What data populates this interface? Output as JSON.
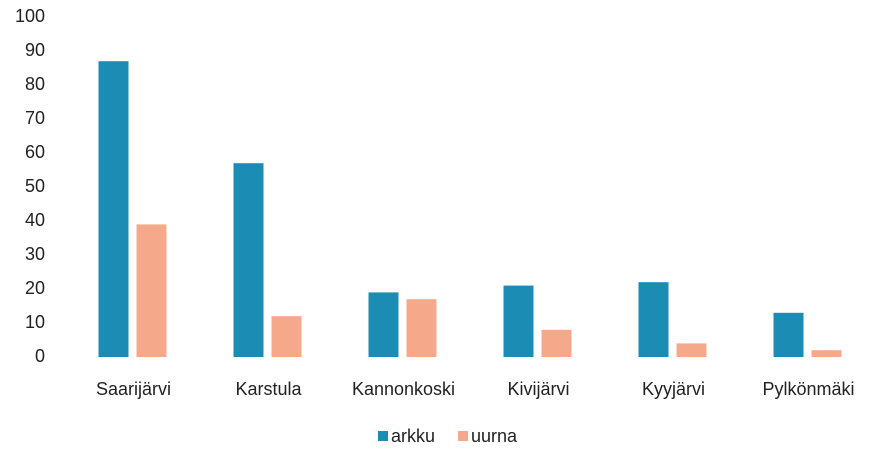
{
  "chart_data": {
    "type": "bar",
    "categories": [
      "Saarijärvi",
      "Karstula",
      "Kannonkoski",
      "Kivijärvi",
      "Kyyjärvi",
      "Pylkönmäki"
    ],
    "series": [
      {
        "name": "arkku",
        "color": "#1b8cb3",
        "values": [
          87,
          57,
          19,
          21,
          22,
          13
        ]
      },
      {
        "name": "uurna",
        "color": "#f5a98a",
        "values": [
          39,
          12,
          17,
          8,
          4,
          2
        ]
      }
    ],
    "ylim": [
      0,
      100
    ],
    "yticks": [
      0,
      10,
      20,
      30,
      40,
      50,
      60,
      70,
      80,
      90,
      100
    ],
    "grid": false,
    "legend": "bottom"
  }
}
